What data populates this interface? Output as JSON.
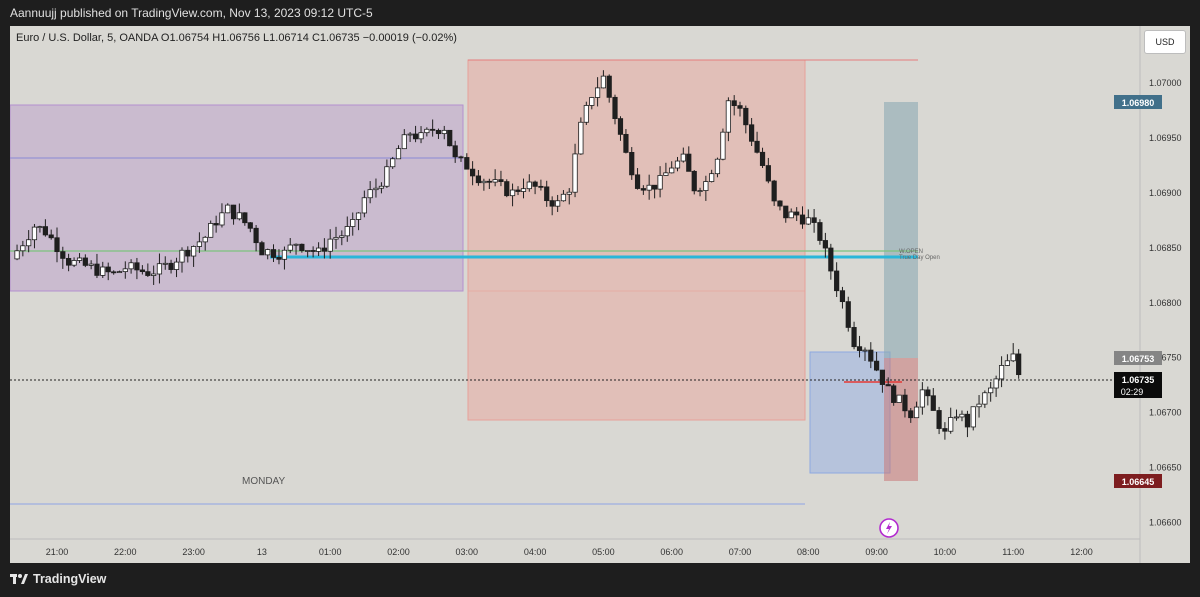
{
  "header": {
    "published": "Aannuujj published on TradingView.com, Nov 13, 2023 09:12 UTC-5"
  },
  "legend": {
    "text": "Euro / U.S. Dollar, 5, OANDA  O1.06754  H1.06756  L1.06714  C1.06735  −0.00019 (−0.02%)"
  },
  "currency_button": "USD",
  "annotations": {
    "monday": "MONDAY",
    "w_open": "W.OPEN",
    "true_day_open": "True Day Open"
  },
  "price_badges": {
    "target": "1.06980",
    "entry": "1.06753",
    "last": "1.06735",
    "countdown": "02:29",
    "stop": "1.06645"
  },
  "footer": {
    "brand": "TradingView"
  },
  "colors": {
    "background": "#d9d8d3",
    "bull": "#ffffff",
    "bear": "#1f1f1f",
    "purple_zone": "rgba(178,140,200,0.38)",
    "red_zone": "rgba(240,150,140,0.38)",
    "blue_zone": "rgba(140,170,230,0.45)",
    "target_zone": "rgba(140,170,180,0.6)",
    "stop_zone": "rgba(200,120,120,0.55)",
    "w_open_line": "#7cc27e",
    "true_day_open_line": "#29b6d9",
    "target_badge": "#41708a",
    "entry_badge": "#858585",
    "stop_badge": "#7d1d1f"
  },
  "chart_data": {
    "type": "candlestick",
    "symbol": "Euro / U.S. Dollar",
    "interval": "5",
    "source": "OANDA",
    "ohlc_last": {
      "open": 1.06754,
      "high": 1.06756,
      "low": 1.06714,
      "close": 1.06735
    },
    "change": "−0.00019 (−0.02%)",
    "x_tick_labels": [
      "21:00",
      "22:00",
      "23:00",
      "13",
      "01:00",
      "02:00",
      "03:00",
      "04:00",
      "05:00",
      "06:00",
      "07:00",
      "08:00",
      "09:00",
      "10:00",
      "11:00",
      "12:00"
    ],
    "y_tick_labels": [
      "1.07000",
      "1.06950",
      "1.06900",
      "1.06850",
      "1.06800",
      "1.06750",
      "1.06700",
      "1.06650",
      "1.06600"
    ],
    "ylim": [
      1.06585,
      1.07052
    ],
    "candles_close_path": [
      [
        20.33,
        1.0684
      ],
      [
        20.5,
        1.06855
      ],
      [
        20.67,
        1.0687
      ],
      [
        20.83,
        1.06865
      ],
      [
        21.0,
        1.06852
      ],
      [
        21.17,
        1.06838
      ],
      [
        21.33,
        1.06835
      ],
      [
        21.5,
        1.06832
      ],
      [
        21.67,
        1.06828
      ],
      [
        21.83,
        1.06826
      ],
      [
        22.0,
        1.06832
      ],
      [
        22.17,
        1.0683
      ],
      [
        22.33,
        1.06828
      ],
      [
        22.5,
        1.0683
      ],
      [
        22.67,
        1.06836
      ],
      [
        22.83,
        1.06845
      ],
      [
        23.0,
        1.06852
      ],
      [
        23.17,
        1.0686
      ],
      [
        23.33,
        1.06875
      ],
      [
        23.5,
        1.06885
      ],
      [
        23.67,
        1.06878
      ],
      [
        23.83,
        1.06868
      ],
      [
        24.0,
        1.06848
      ],
      [
        24.17,
        1.06846
      ],
      [
        24.33,
        1.06845
      ],
      [
        24.5,
        1.06855
      ],
      [
        24.67,
        1.0685
      ],
      [
        24.83,
        1.06845
      ],
      [
        25.0,
        1.06858
      ],
      [
        25.17,
        1.06862
      ],
      [
        25.33,
        1.0687
      ],
      [
        25.5,
        1.06895
      ],
      [
        25.67,
        1.06905
      ],
      [
        25.83,
        1.06918
      ],
      [
        26.0,
        1.0694
      ],
      [
        26.17,
        1.06955
      ],
      [
        26.33,
        1.0695
      ],
      [
        26.5,
        1.06958
      ],
      [
        26.67,
        1.0696
      ],
      [
        26.83,
        1.0693
      ],
      [
        27.0,
        1.06925
      ],
      [
        27.17,
        1.06915
      ],
      [
        27.33,
        1.0691
      ],
      [
        27.5,
        1.06905
      ],
      [
        27.67,
        1.069
      ],
      [
        27.83,
        1.06908
      ],
      [
        28.0,
        1.06905
      ],
      [
        28.17,
        1.06895
      ],
      [
        28.33,
        1.0689
      ],
      [
        28.5,
        1.06905
      ],
      [
        28.67,
        1.0696
      ],
      [
        28.83,
        1.0699
      ],
      [
        29.0,
        1.07005
      ],
      [
        29.17,
        1.0697
      ],
      [
        29.33,
        1.06935
      ],
      [
        29.5,
        1.0691
      ],
      [
        29.67,
        1.06905
      ],
      [
        29.83,
        1.0691
      ],
      [
        30.0,
        1.06925
      ],
      [
        30.17,
        1.0693
      ],
      [
        30.33,
        1.06905
      ],
      [
        30.5,
        1.0691
      ],
      [
        30.67,
        1.06935
      ],
      [
        30.83,
        1.06985
      ],
      [
        31.0,
        1.06975
      ],
      [
        31.17,
        1.0695
      ],
      [
        31.33,
        1.06925
      ],
      [
        31.5,
        1.0689
      ],
      [
        31.67,
        1.0688
      ],
      [
        31.83,
        1.0688
      ],
      [
        32.0,
        1.06875
      ],
      [
        32.17,
        1.0686
      ],
      [
        32.33,
        1.0683
      ],
      [
        32.5,
        1.068
      ],
      [
        32.67,
        1.06765
      ],
      [
        32.83,
        1.0676
      ],
      [
        33.0,
        1.0674
      ],
      [
        33.17,
        1.0672
      ],
      [
        33.33,
        1.0671
      ],
      [
        33.5,
        1.067
      ],
      [
        33.67,
        1.0672
      ],
      [
        33.83,
        1.067
      ],
      [
        34.0,
        1.0668
      ],
      [
        34.17,
        1.067
      ],
      [
        34.33,
        1.0669
      ],
      [
        34.5,
        1.0671
      ],
      [
        34.67,
        1.0672
      ],
      [
        34.83,
        1.0674
      ],
      [
        35.0,
        1.0675
      ],
      [
        35.08,
        1.06735
      ]
    ],
    "zones": [
      {
        "name": "asian range",
        "from": "20:00",
        "to": "03:00",
        "low": 1.06813,
        "high": 1.06963
      },
      {
        "name": "london range",
        "from": "03:00",
        "to": "08:00",
        "low": 1.06695,
        "high": 1.07012
      },
      {
        "name": "ny range",
        "from": "08:00",
        "to": "09:10",
        "low": 1.0665,
        "high": 1.06755
      }
    ],
    "horizontal_lines": [
      {
        "name": "W.OPEN",
        "value": 1.06848
      },
      {
        "name": "True Day Open",
        "value": 1.06842
      }
    ],
    "position": {
      "entry": 1.06753,
      "target": 1.0698,
      "stop": 1.06645,
      "last": 1.06735
    }
  }
}
